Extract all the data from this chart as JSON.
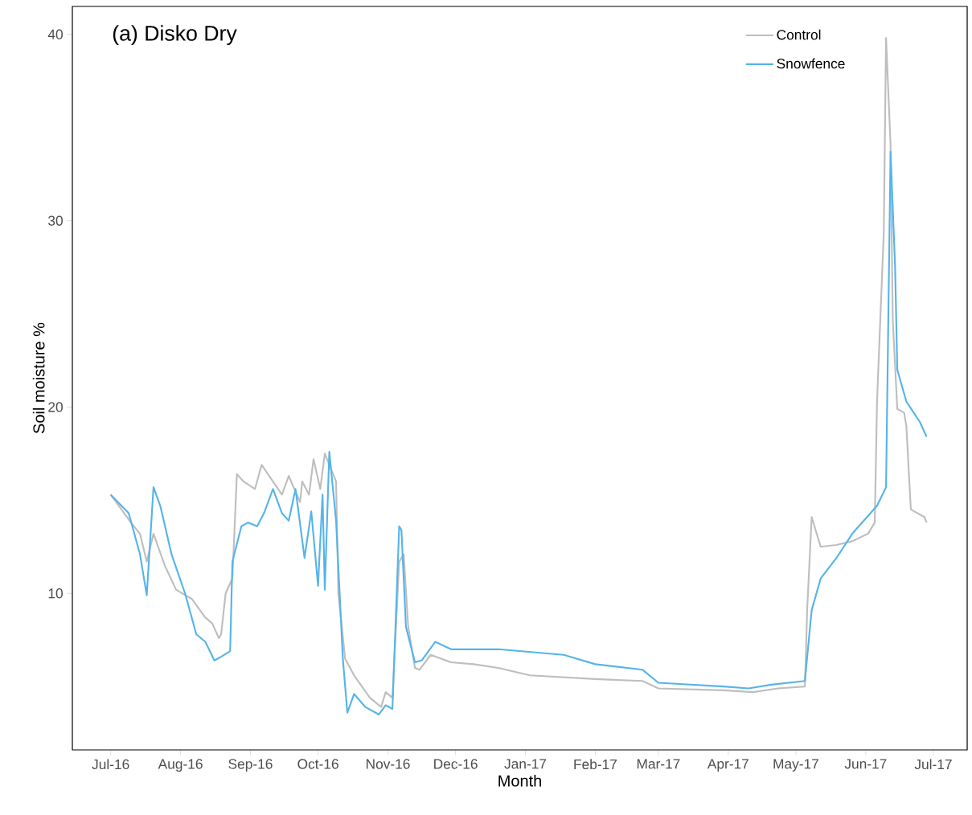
{
  "chart_data": {
    "type": "line",
    "title": "(a) Disko Dry",
    "xlabel": "Month",
    "ylabel": "Soil moisture %",
    "xlim": [
      "2016-06-14",
      "2017-07-16"
    ],
    "ylim": [
      1.6,
      41.5
    ],
    "xticks": [
      {
        "value": "2016-07-01",
        "label": "Jul-16"
      },
      {
        "value": "2016-08-01",
        "label": "Aug-16"
      },
      {
        "value": "2016-09-01",
        "label": "Sep-16"
      },
      {
        "value": "2016-10-01",
        "label": "Oct-16"
      },
      {
        "value": "2016-11-01",
        "label": "Nov-16"
      },
      {
        "value": "2016-12-01",
        "label": "Dec-16"
      },
      {
        "value": "2017-01-01",
        "label": "Jan-17"
      },
      {
        "value": "2017-02-01",
        "label": "Feb-17"
      },
      {
        "value": "2017-03-01",
        "label": "Mar-17"
      },
      {
        "value": "2017-04-01",
        "label": "Apr-17"
      },
      {
        "value": "2017-05-01",
        "label": "May-17"
      },
      {
        "value": "2017-06-01",
        "label": "Jun-17"
      },
      {
        "value": "2017-07-01",
        "label": "Jul-17"
      }
    ],
    "yticks": [
      10,
      20,
      30,
      40
    ],
    "grid": false,
    "legend": "top right",
    "marker": "none",
    "line_style": "solid",
    "series": [
      {
        "name": "Control",
        "color": "#bebebe",
        "x": [
          "2016-07-01",
          "2016-07-10",
          "2016-07-14",
          "2016-07-17",
          "2016-07-20",
          "2016-07-25",
          "2016-07-30",
          "2016-08-06",
          "2016-08-12",
          "2016-08-15",
          "2016-08-18",
          "2016-08-19",
          "2016-08-21",
          "2016-08-24",
          "2016-08-26",
          "2016-08-29",
          "2016-09-03",
          "2016-09-06",
          "2016-09-11",
          "2016-09-15",
          "2016-09-18",
          "2016-09-23",
          "2016-09-24",
          "2016-09-27",
          "2016-09-29",
          "2016-10-02",
          "2016-10-04",
          "2016-10-09",
          "2016-10-10",
          "2016-10-13",
          "2016-10-17",
          "2016-10-24",
          "2016-10-29",
          "2016-10-31",
          "2016-11-03",
          "2016-11-06",
          "2016-11-08",
          "2016-11-10",
          "2016-11-13",
          "2016-11-15",
          "2016-11-20",
          "2016-11-29",
          "2016-12-09",
          "2016-12-20",
          "2017-01-03",
          "2017-02-01",
          "2017-02-22",
          "2017-03-01",
          "2017-03-30",
          "2017-04-12",
          "2017-04-23",
          "2017-05-05",
          "2017-05-06",
          "2017-05-08",
          "2017-05-12",
          "2017-05-19",
          "2017-05-26",
          "2017-06-02",
          "2017-06-05",
          "2017-06-06",
          "2017-06-09",
          "2017-06-10",
          "2017-06-12",
          "2017-06-13",
          "2017-06-15",
          "2017-06-18",
          "2017-06-19",
          "2017-06-21",
          "2017-06-27",
          "2017-06-28"
        ],
        "values": [
          15.3,
          13.8,
          13.2,
          11.7,
          13.2,
          11.5,
          10.2,
          9.7,
          8.7,
          8.4,
          7.6,
          7.8,
          10.0,
          10.8,
          16.4,
          16.0,
          15.6,
          16.9,
          16.0,
          15.3,
          16.3,
          14.9,
          16.0,
          15.3,
          17.2,
          15.6,
          17.5,
          16.0,
          10.0,
          6.5,
          5.6,
          4.4,
          3.9,
          4.7,
          4.4,
          11.7,
          12.1,
          8.2,
          6.0,
          5.9,
          6.7,
          6.3,
          6.2,
          6.0,
          5.6,
          5.4,
          5.3,
          4.9,
          4.8,
          4.7,
          4.9,
          5.0,
          9.1,
          14.1,
          12.5,
          12.6,
          12.8,
          13.2,
          13.8,
          20.3,
          29.4,
          39.8,
          34.1,
          24.6,
          19.9,
          19.7,
          19.0,
          14.5,
          14.1,
          13.8
        ]
      },
      {
        "name": "Snowfence",
        "color": "#56b4e9",
        "x": [
          "2016-07-01",
          "2016-07-09",
          "2016-07-14",
          "2016-07-17",
          "2016-07-20",
          "2016-07-23",
          "2016-07-28",
          "2016-08-03",
          "2016-08-08",
          "2016-08-12",
          "2016-08-16",
          "2016-08-19",
          "2016-08-23",
          "2016-08-24",
          "2016-08-28",
          "2016-08-31",
          "2016-09-04",
          "2016-09-07",
          "2016-09-11",
          "2016-09-15",
          "2016-09-18",
          "2016-09-21",
          "2016-09-25",
          "2016-09-28",
          "2016-10-01",
          "2016-10-03",
          "2016-10-04",
          "2016-10-06",
          "2016-10-09",
          "2016-10-12",
          "2016-10-14",
          "2016-10-17",
          "2016-10-22",
          "2016-10-28",
          "2016-10-31",
          "2016-11-03",
          "2016-11-06",
          "2016-11-07",
          "2016-11-09",
          "2016-11-13",
          "2016-11-16",
          "2016-11-22",
          "2016-11-29",
          "2016-12-20",
          "2017-01-18",
          "2017-02-01",
          "2017-02-22",
          "2017-03-01",
          "2017-03-30",
          "2017-04-10",
          "2017-04-20",
          "2017-05-05",
          "2017-05-08",
          "2017-05-12",
          "2017-05-19",
          "2017-05-26",
          "2017-06-06",
          "2017-06-10",
          "2017-06-12",
          "2017-06-14",
          "2017-06-15",
          "2017-06-19",
          "2017-06-25",
          "2017-06-28"
        ],
        "values": [
          15.3,
          14.3,
          12.1,
          9.9,
          15.7,
          14.7,
          12.1,
          10.0,
          7.8,
          7.4,
          6.4,
          6.6,
          6.9,
          11.7,
          13.6,
          13.8,
          13.6,
          14.3,
          15.6,
          14.3,
          13.9,
          15.6,
          11.9,
          14.4,
          10.4,
          15.3,
          10.2,
          17.6,
          13.9,
          6.5,
          3.6,
          4.6,
          3.9,
          3.5,
          4.0,
          3.8,
          13.6,
          13.4,
          8.2,
          6.3,
          6.4,
          7.4,
          7.0,
          7.0,
          6.7,
          6.2,
          5.9,
          5.2,
          5.0,
          4.9,
          5.1,
          5.3,
          9.1,
          10.8,
          11.9,
          13.2,
          14.7,
          15.7,
          33.7,
          27.6,
          22.0,
          20.3,
          19.2,
          18.4
        ]
      }
    ]
  }
}
